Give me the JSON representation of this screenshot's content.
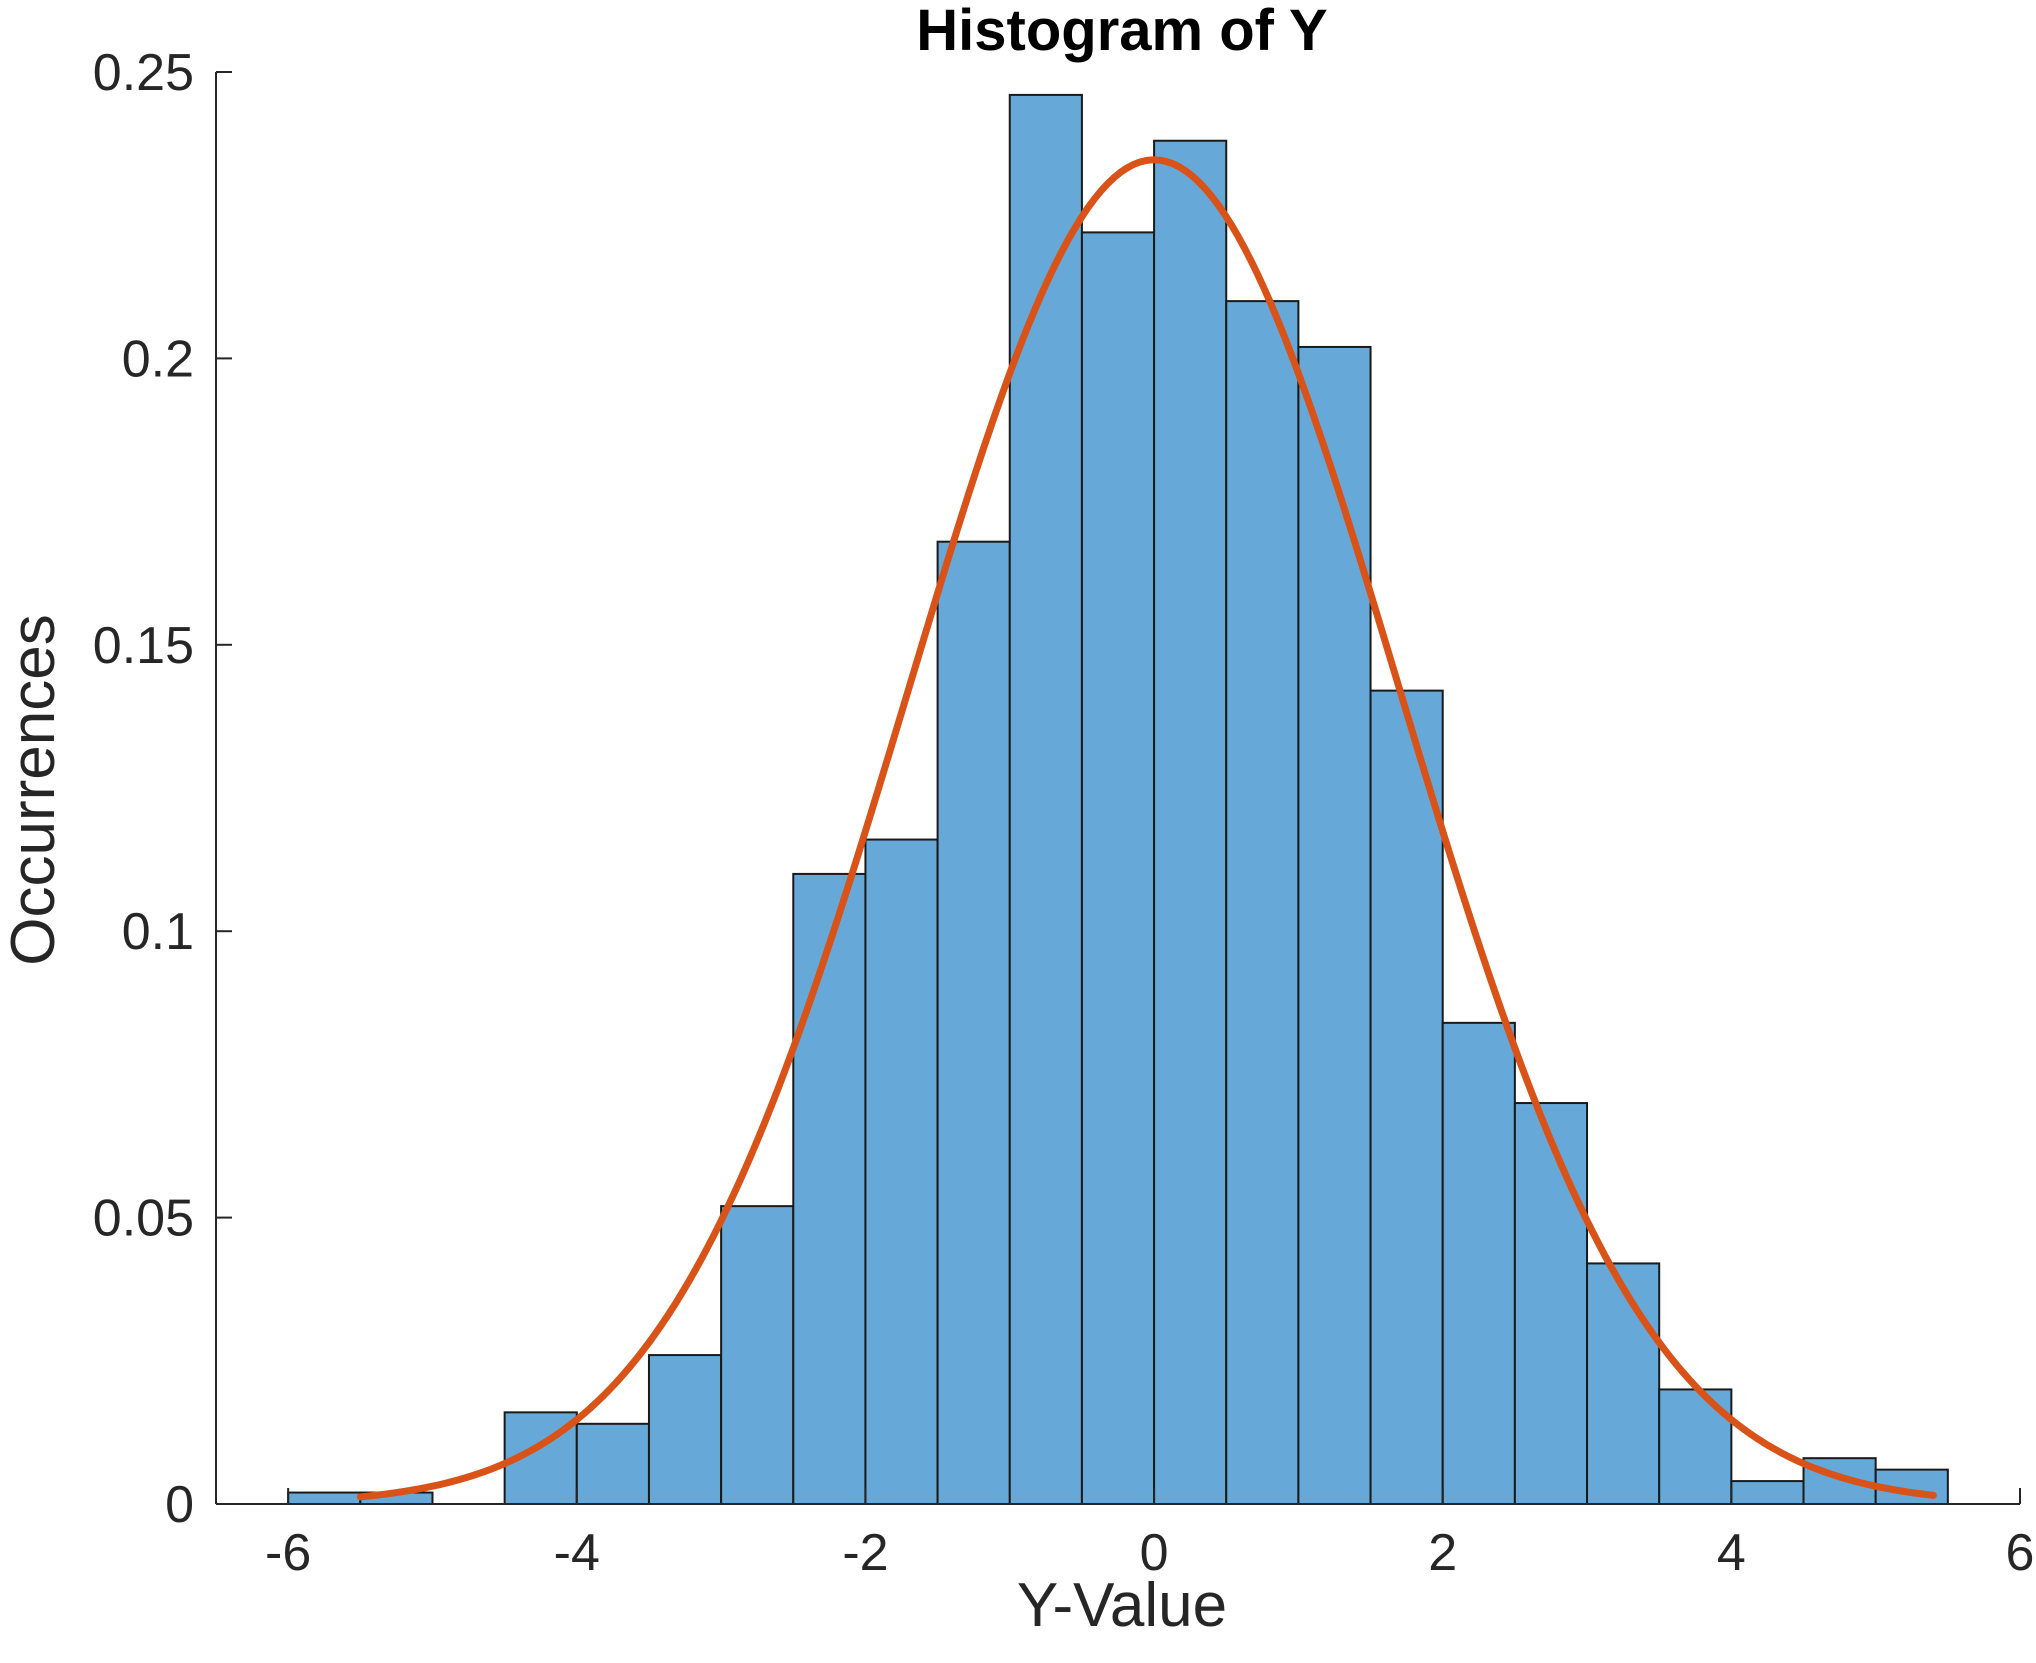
{
  "chart_data": {
    "type": "bar",
    "title": "Histogram of Y",
    "xlabel": "Y-Value",
    "ylabel": "Occurrences",
    "xlim": [
      -6.5,
      6
    ],
    "ylim": [
      0,
      0.25
    ],
    "x_ticks": [
      "-6",
      "-4",
      "-2",
      "0",
      "2",
      "4",
      "6"
    ],
    "x_tick_values": [
      -6,
      -4,
      -2,
      0,
      2,
      4,
      6
    ],
    "y_ticks": [
      "0",
      "0.05",
      "0.1",
      "0.15",
      "0.2",
      "0.25"
    ],
    "y_tick_values": [
      0,
      0.05,
      0.1,
      0.15,
      0.2,
      0.25
    ],
    "grid": false,
    "bin_width": 0.5,
    "bins": [
      {
        "start": -6.0,
        "end": -5.5,
        "value": 0.002
      },
      {
        "start": -5.5,
        "end": -5.0,
        "value": 0.002
      },
      {
        "start": -5.0,
        "end": -4.5,
        "value": 0.0
      },
      {
        "start": -4.5,
        "end": -4.0,
        "value": 0.016
      },
      {
        "start": -4.0,
        "end": -3.5,
        "value": 0.014
      },
      {
        "start": -3.5,
        "end": -3.0,
        "value": 0.026
      },
      {
        "start": -3.0,
        "end": -2.5,
        "value": 0.052
      },
      {
        "start": -2.5,
        "end": -2.0,
        "value": 0.11
      },
      {
        "start": -2.0,
        "end": -1.5,
        "value": 0.116
      },
      {
        "start": -1.5,
        "end": -1.0,
        "value": 0.168
      },
      {
        "start": -1.0,
        "end": -0.5,
        "value": 0.246
      },
      {
        "start": -0.5,
        "end": 0.0,
        "value": 0.222
      },
      {
        "start": 0.0,
        "end": 0.5,
        "value": 0.238
      },
      {
        "start": 0.5,
        "end": 1.0,
        "value": 0.21
      },
      {
        "start": 1.0,
        "end": 1.5,
        "value": 0.202
      },
      {
        "start": 1.5,
        "end": 2.0,
        "value": 0.142
      },
      {
        "start": 2.0,
        "end": 2.5,
        "value": 0.084
      },
      {
        "start": 2.5,
        "end": 3.0,
        "value": 0.07
      },
      {
        "start": 3.0,
        "end": 3.5,
        "value": 0.042
      },
      {
        "start": 3.5,
        "end": 4.0,
        "value": 0.02
      },
      {
        "start": 4.0,
        "end": 4.5,
        "value": 0.004
      },
      {
        "start": 4.5,
        "end": 5.0,
        "value": 0.008
      },
      {
        "start": 5.0,
        "end": 5.5,
        "value": 0.006
      }
    ],
    "fit_curve": {
      "type": "normal_pdf",
      "mean": 0,
      "std": 1.7,
      "x_range": [
        -5.5,
        5.4
      ]
    },
    "colors": {
      "bar_fill": "#66a8d7",
      "bar_edge": "#1a1a1a",
      "curve": "#d95319",
      "axis": "#262626"
    }
  }
}
